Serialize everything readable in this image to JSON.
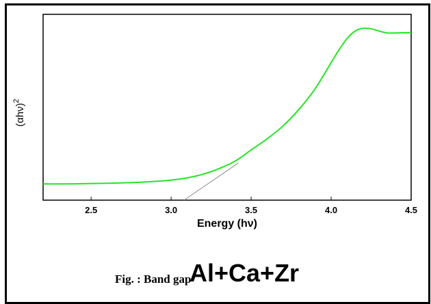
{
  "chart_data": {
    "type": "line",
    "xlabel": "Energy (hν)",
    "ylabel": "(αhν)",
    "ylabel_superscript": "2",
    "xlim": [
      2.2,
      4.5
    ],
    "ylim": [
      0,
      1
    ],
    "x_ticks": [
      2.5,
      3.0,
      3.5,
      4.0,
      4.5
    ],
    "x_tick_labels": [
      "2.5",
      "3.0",
      "3.5",
      "4.0",
      "4.5"
    ],
    "grid": false,
    "series_color": "#22e622",
    "fit_line_color": "#888888",
    "series": [
      {
        "x": [
          2.2,
          2.4,
          2.6,
          2.8,
          2.9,
          3.0,
          3.1,
          3.2,
          3.3,
          3.4,
          3.5,
          3.6,
          3.7,
          3.8,
          3.9,
          4.0,
          4.05,
          4.1,
          4.15,
          4.2,
          4.25,
          4.3,
          4.35,
          4.4,
          4.5
        ],
        "y": [
          0.087,
          0.088,
          0.091,
          0.096,
          0.101,
          0.108,
          0.12,
          0.14,
          0.17,
          0.21,
          0.27,
          0.33,
          0.4,
          0.49,
          0.6,
          0.74,
          0.81,
          0.87,
          0.91,
          0.925,
          0.922,
          0.91,
          0.9,
          0.9,
          0.902
        ]
      }
    ],
    "fit_line": {
      "x": [
        3.08,
        3.42
      ],
      "y": [
        0.0,
        0.2
      ]
    }
  },
  "caption": {
    "fig_label": "Fig. : Band gap",
    "overlay": "Al+Ca+Zr"
  }
}
